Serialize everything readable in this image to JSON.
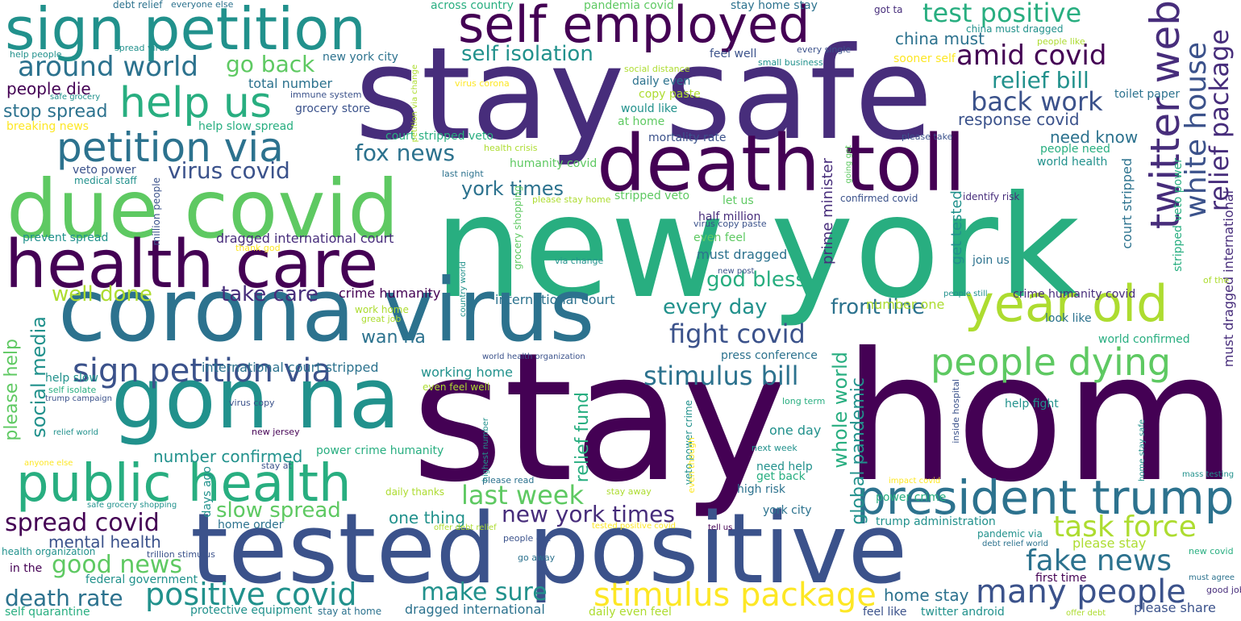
{
  "palette": {
    "v0": "#440154",
    "v1": "#472d7b",
    "v2": "#3b528b",
    "v3": "#2c728e",
    "v4": "#21918c",
    "v5": "#28ae80",
    "v6": "#5ec962",
    "v7": "#addc30",
    "v8": "#fde725"
  },
  "words": [
    {
      "text": "stay home"
    },
    {
      "text": "new york"
    },
    {
      "text": "stay safe"
    },
    {
      "text": "tested positive"
    },
    {
      "text": "corona virus"
    },
    {
      "text": "death toll"
    },
    {
      "text": "due covid"
    },
    {
      "text": "gon na"
    },
    {
      "text": "health care"
    },
    {
      "text": "sign petition"
    },
    {
      "text": "self employed"
    },
    {
      "text": "public health"
    },
    {
      "text": "president trump"
    },
    {
      "text": "year old"
    },
    {
      "text": "petition via"
    },
    {
      "text": "sign petition via"
    },
    {
      "text": "help us"
    },
    {
      "text": "twitter web"
    },
    {
      "text": "people dying"
    },
    {
      "text": "positive covid"
    },
    {
      "text": "stimulus package"
    },
    {
      "text": "many people"
    },
    {
      "text": "fake news"
    },
    {
      "text": "task force"
    },
    {
      "text": "around world"
    },
    {
      "text": "test positive"
    },
    {
      "text": "amid covid"
    },
    {
      "text": "back work"
    },
    {
      "text": "relief bill"
    },
    {
      "text": "white house"
    },
    {
      "text": "relief package"
    },
    {
      "text": "good news"
    },
    {
      "text": "spread covid"
    },
    {
      "text": "last week"
    },
    {
      "text": "make sure"
    },
    {
      "text": "death rate"
    },
    {
      "text": "stimulus bill"
    },
    {
      "text": "fight covid"
    },
    {
      "text": "new york times"
    },
    {
      "text": "slow spread"
    },
    {
      "text": "self isolation"
    },
    {
      "text": "virus covid"
    },
    {
      "text": "fox news"
    },
    {
      "text": "go back"
    },
    {
      "text": "god bless"
    },
    {
      "text": "every day"
    },
    {
      "text": "front line"
    },
    {
      "text": "take care"
    },
    {
      "text": "well done"
    },
    {
      "text": "social media"
    },
    {
      "text": "please help"
    },
    {
      "text": "whole world"
    },
    {
      "text": "york times"
    },
    {
      "text": "number confirmed"
    },
    {
      "text": "mental health"
    },
    {
      "text": "home stay"
    },
    {
      "text": "please share"
    },
    {
      "text": "wan na"
    },
    {
      "text": "one thing"
    },
    {
      "text": "relief fund"
    },
    {
      "text": "global pandemic"
    },
    {
      "text": "stop spread"
    },
    {
      "text": "people die"
    },
    {
      "text": "china must"
    },
    {
      "text": "need know"
    },
    {
      "text": "response covid"
    },
    {
      "text": "prime minister"
    },
    {
      "text": "get tested"
    },
    {
      "text": "court stripped"
    },
    {
      "text": "must dragged international"
    },
    {
      "text": "stripped veto power"
    },
    {
      "text": "international court stripped"
    },
    {
      "text": "dragged international court"
    },
    {
      "text": "dragged international"
    },
    {
      "text": "international court"
    },
    {
      "text": "crime humanity covid"
    },
    {
      "text": "crime humanity"
    },
    {
      "text": "number one"
    },
    {
      "text": "please stay"
    },
    {
      "text": "one day"
    },
    {
      "text": "working home"
    },
    {
      "text": "court stripped veto"
    },
    {
      "text": "humanity covid"
    },
    {
      "text": "stripped veto"
    },
    {
      "text": "veto power"
    },
    {
      "text": "total number"
    },
    {
      "text": "new york city"
    },
    {
      "text": "grocery store"
    },
    {
      "text": "trump administration"
    },
    {
      "text": "york city"
    },
    {
      "text": "need help"
    },
    {
      "text": "get back"
    },
    {
      "text": "high risk"
    },
    {
      "text": "join us"
    },
    {
      "text": "let us"
    },
    {
      "text": "half million"
    },
    {
      "text": "even feel"
    },
    {
      "text": "must dragged"
    },
    {
      "text": "confirmed covid"
    },
    {
      "text": "identify risk"
    },
    {
      "text": "mortality rate"
    },
    {
      "text": "would like"
    },
    {
      "text": "at home"
    },
    {
      "text": "copy paste"
    },
    {
      "text": "daily even"
    },
    {
      "text": "feel well"
    },
    {
      "text": "pandemia covid"
    },
    {
      "text": "stay home stay"
    },
    {
      "text": "across country"
    },
    {
      "text": "got ta"
    },
    {
      "text": "china must dragged"
    },
    {
      "text": "people need"
    },
    {
      "text": "world health"
    },
    {
      "text": "help slow spread"
    },
    {
      "text": "breaking news"
    },
    {
      "text": "prevent spread"
    },
    {
      "text": "million people"
    },
    {
      "text": "medical staff"
    },
    {
      "text": "help slow"
    },
    {
      "text": "days ago"
    },
    {
      "text": "home order"
    },
    {
      "text": "power crime"
    },
    {
      "text": "look like"
    },
    {
      "text": "world confirmed"
    },
    {
      "text": "press conference"
    },
    {
      "text": "help fight"
    },
    {
      "text": "federal government"
    },
    {
      "text": "first time"
    },
    {
      "text": "feel like"
    },
    {
      "text": "twitter android"
    },
    {
      "text": "power crime humanity"
    },
    {
      "text": "veto power crime"
    },
    {
      "text": "grocery shopping"
    },
    {
      "text": "protective equipment"
    },
    {
      "text": "self quarantine"
    },
    {
      "text": "in the"
    },
    {
      "text": "daily even feel"
    },
    {
      "text": "stay at home"
    },
    {
      "text": "health organization"
    },
    {
      "text": "trillion stimulus"
    },
    {
      "text": "toilet paper"
    },
    {
      "text": "people like"
    },
    {
      "text": "small business"
    },
    {
      "text": "every single"
    },
    {
      "text": "sooner self"
    },
    {
      "text": "debt relief"
    },
    {
      "text": "everyone else"
    },
    {
      "text": "spread virus"
    },
    {
      "text": "help people"
    },
    {
      "text": "safe grocery"
    },
    {
      "text": "immune system"
    },
    {
      "text": "virus corona"
    },
    {
      "text": "social distance"
    },
    {
      "text": "petition via change"
    },
    {
      "text": "health crisis"
    },
    {
      "text": "last night"
    },
    {
      "text": "please take"
    },
    {
      "text": "going get"
    },
    {
      "text": "please stay home"
    },
    {
      "text": "thank god"
    },
    {
      "text": "virus copy paste"
    },
    {
      "text": "via change"
    },
    {
      "text": "country world"
    },
    {
      "text": "new post"
    },
    {
      "text": "people still"
    },
    {
      "text": "of the"
    },
    {
      "text": "work home"
    },
    {
      "text": "great job"
    },
    {
      "text": "world health organization"
    },
    {
      "text": "even feel well"
    },
    {
      "text": "virus copy"
    },
    {
      "text": "self isolate"
    },
    {
      "text": "trump campaign"
    },
    {
      "text": "relief world"
    },
    {
      "text": "new jersey"
    },
    {
      "text": "anyone else"
    },
    {
      "text": "stay at"
    },
    {
      "text": "highest number"
    },
    {
      "text": "inside hospital"
    },
    {
      "text": "long term"
    },
    {
      "text": "next week"
    },
    {
      "text": "even though"
    },
    {
      "text": "please read"
    },
    {
      "text": "daily thanks"
    },
    {
      "text": "stay away"
    },
    {
      "text": "impact covid"
    },
    {
      "text": "home stay safe"
    },
    {
      "text": "mass testing"
    },
    {
      "text": "safe grocery shopping"
    },
    {
      "text": "offer debt relief"
    },
    {
      "text": "tested positive covid"
    },
    {
      "text": "tell us"
    },
    {
      "text": "people get"
    },
    {
      "text": "debt relief world"
    },
    {
      "text": "pandemic via"
    },
    {
      "text": "new covid"
    },
    {
      "text": "go away"
    },
    {
      "text": "must agree"
    },
    {
      "text": "good job"
    },
    {
      "text": "offer debt"
    }
  ]
}
